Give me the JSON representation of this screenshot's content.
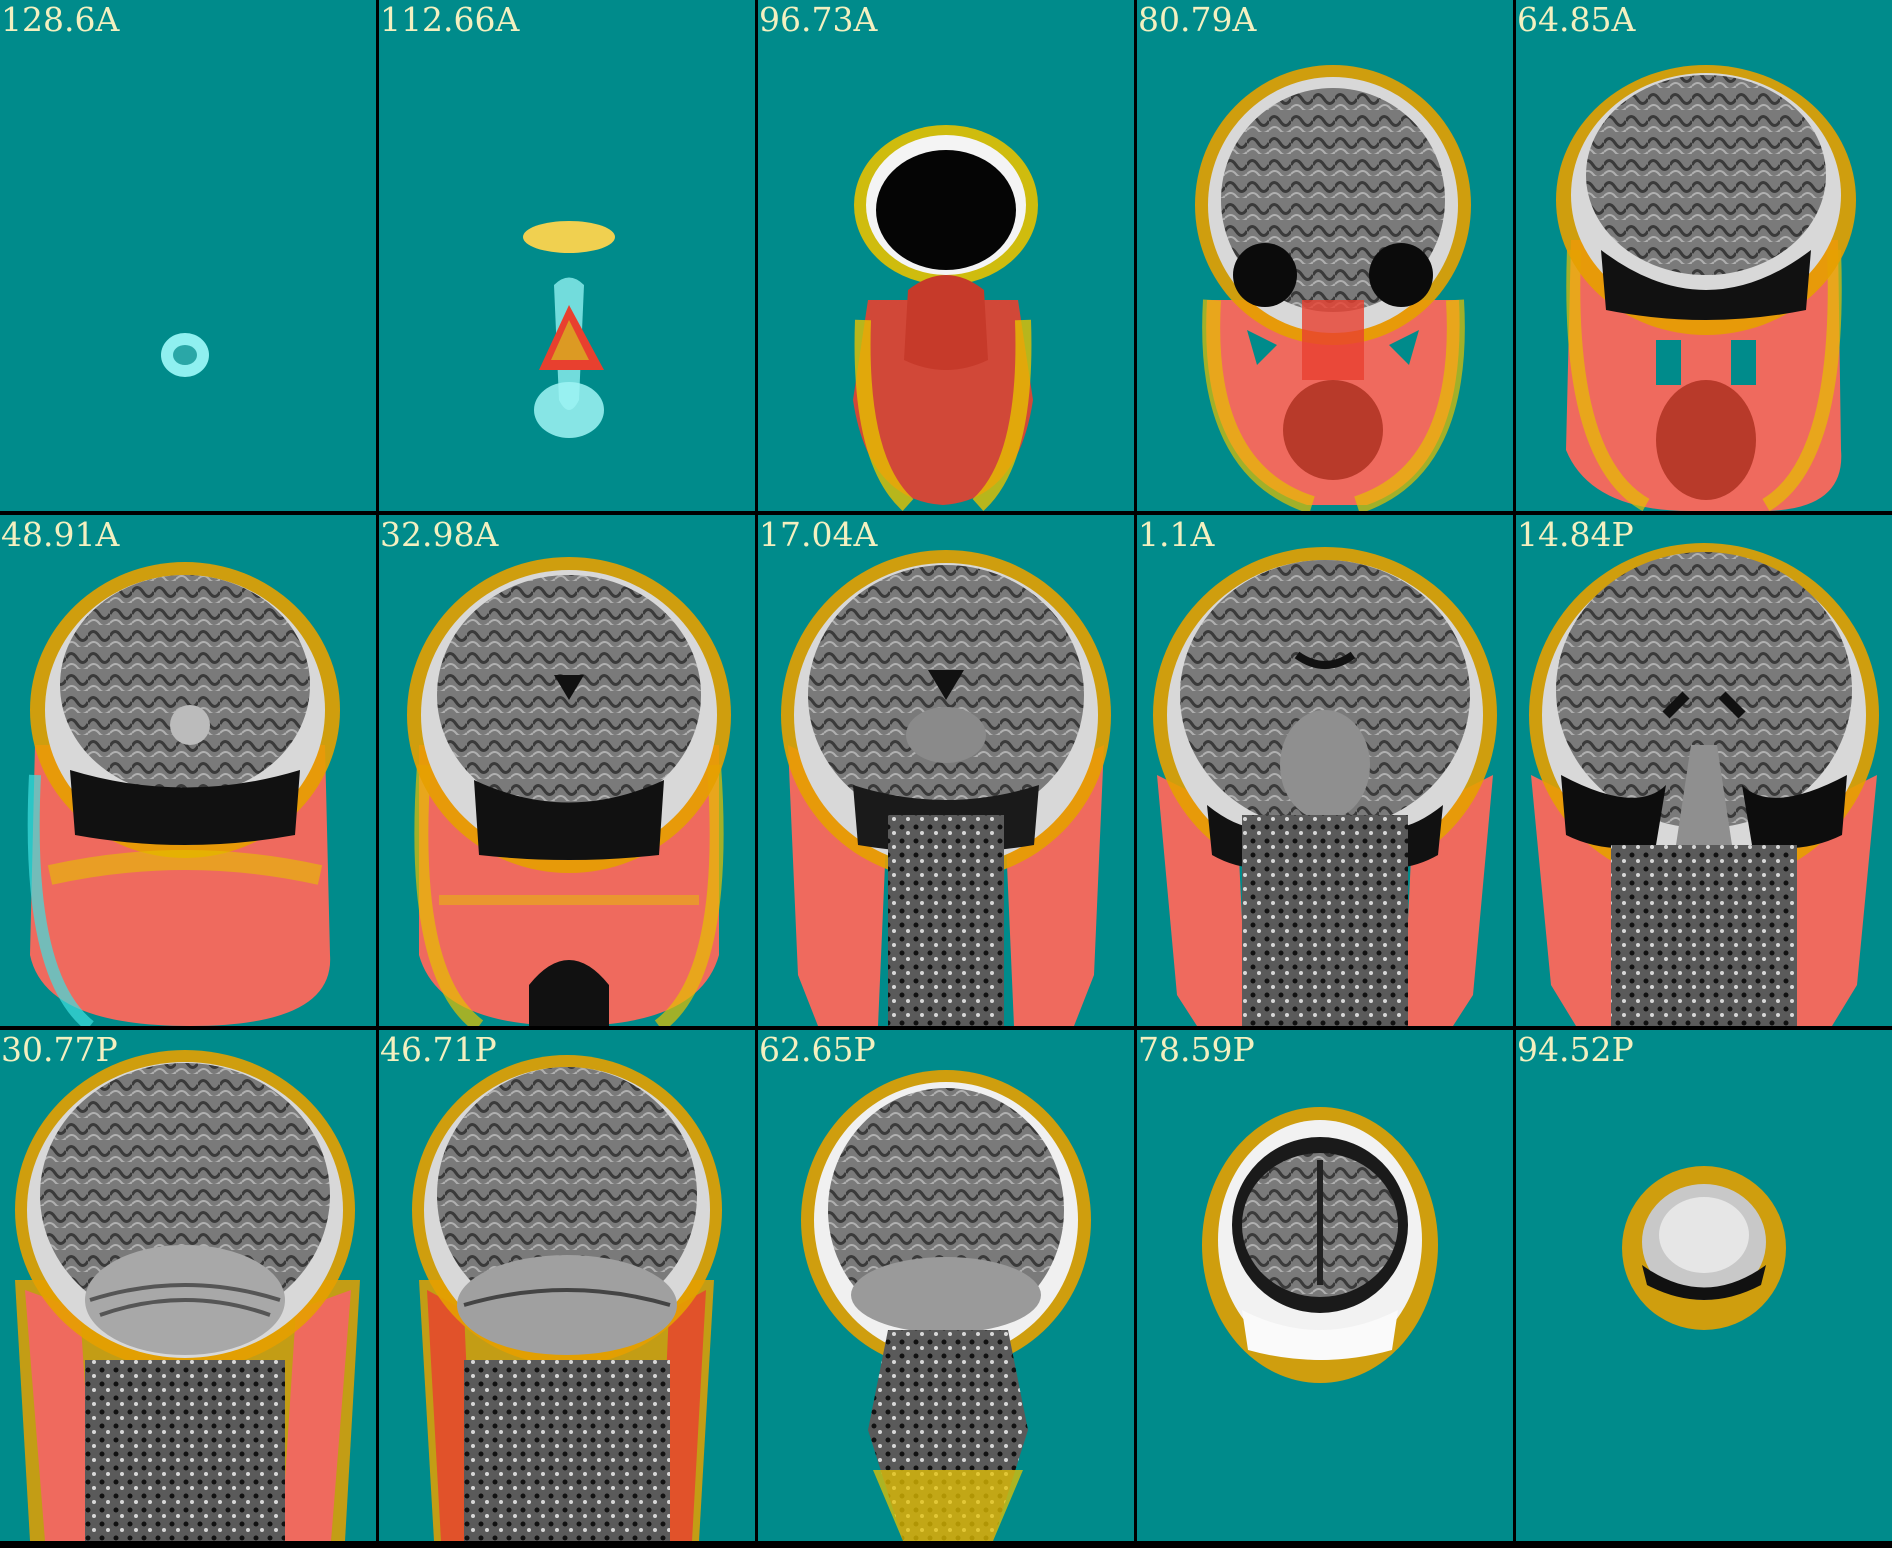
{
  "montage": {
    "background_color": "#008b8b",
    "label_color": "#f3f0c0",
    "overlay_colors": [
      "#ff3b30",
      "#e5c100",
      "#3fe0e0"
    ],
    "slices": [
      {
        "label": "128.6A"
      },
      {
        "label": "112.66A"
      },
      {
        "label": "96.73A"
      },
      {
        "label": "80.79A"
      },
      {
        "label": "64.85A"
      },
      {
        "label": "48.91A"
      },
      {
        "label": "32.98A"
      },
      {
        "label": "17.04A"
      },
      {
        "label": "1.1A"
      },
      {
        "label": "14.84P"
      },
      {
        "label": "30.77P"
      },
      {
        "label": "46.71P"
      },
      {
        "label": "62.65P"
      },
      {
        "label": "78.59P"
      },
      {
        "label": "94.52P"
      }
    ]
  }
}
